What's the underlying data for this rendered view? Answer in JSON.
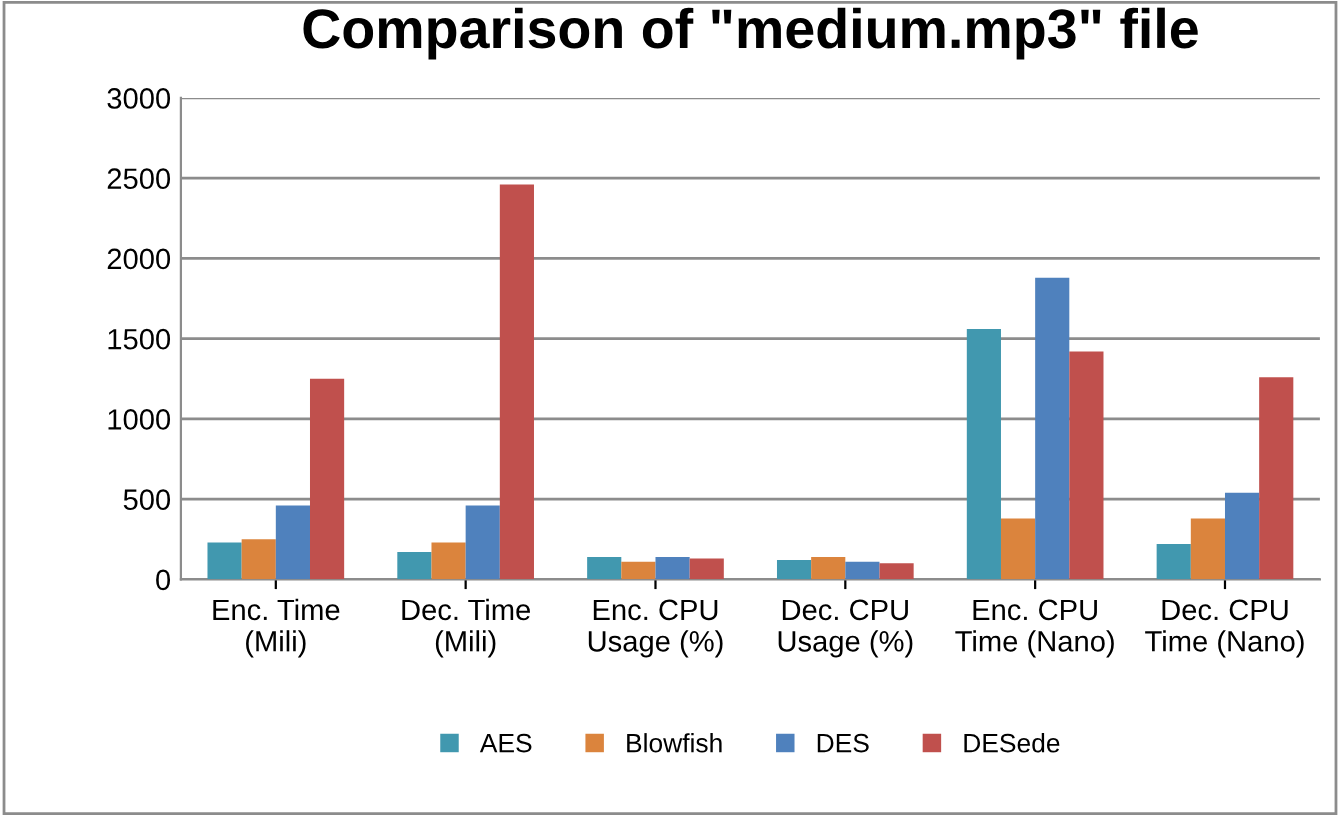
{
  "chart_data": {
    "type": "bar",
    "title": "Comparison of \"medium.mp3\" file",
    "categories": [
      "Enc. Time\n(Mili)",
      "Dec. Time\n(Mili)",
      "Enc. CPU\nUsage (%)",
      "Dec. CPU\nUsage (%)",
      "Enc. CPU\nTime (Nano)",
      "Dec. CPU\nTime (Nano)"
    ],
    "series": [
      {
        "name": "AES",
        "color": "#4198af",
        "values": [
          230,
          170,
          140,
          120,
          1560,
          220
        ]
      },
      {
        "name": "Blowfish",
        "color": "#db843d",
        "values": [
          250,
          230,
          110,
          140,
          380,
          380
        ]
      },
      {
        "name": "DES",
        "color": "#4f81bd",
        "values": [
          460,
          460,
          140,
          110,
          1880,
          540
        ]
      },
      {
        "name": "DESede",
        "color": "#c0504d",
        "values": [
          1250,
          2460,
          130,
          100,
          1420,
          1260
        ]
      }
    ],
    "ylim": [
      0,
      3000
    ],
    "yticks": [
      0,
      500,
      1000,
      1500,
      2000,
      2500,
      3000
    ],
    "grid": "y",
    "legend": "bottom"
  }
}
